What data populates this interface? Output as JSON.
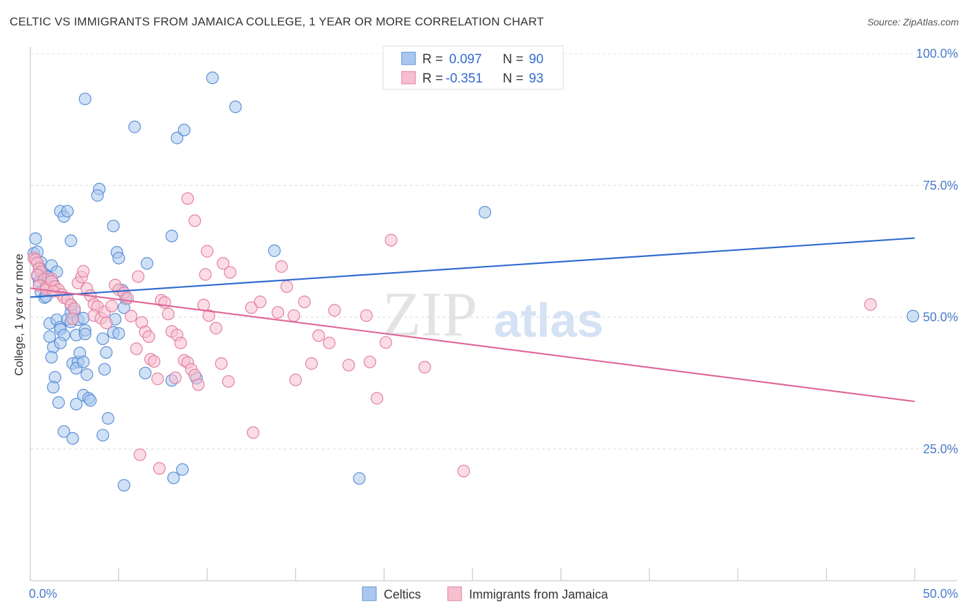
{
  "title": "CELTIC VS IMMIGRANTS FROM JAMAICA COLLEGE, 1 YEAR OR MORE CORRELATION CHART",
  "source": "Source: ZipAtlas.com",
  "watermark": {
    "zip": "ZIP",
    "atlas": "atlas"
  },
  "legend": {
    "r_label": "R =",
    "n_label": "N =",
    "rows": [
      {
        "r": "0.097",
        "n": "90",
        "color": "#a9c8ef",
        "stroke": "#5b8fd6"
      },
      {
        "r": "-0.351",
        "n": "93",
        "color": "#f7bfd0",
        "stroke": "#e27fa0"
      }
    ]
  },
  "chart_data": {
    "type": "scatter",
    "title": "CELTIC VS IMMIGRANTS FROM JAMAICA COLLEGE, 1 YEAR OR MORE CORRELATION CHART",
    "xlabel": "",
    "ylabel": "College, 1 year or more",
    "xlim": [
      0,
      50
    ],
    "ylim": [
      0,
      100
    ],
    "x_ticks_labeled": [
      "0.0%",
      "50.0%"
    ],
    "y_ticks_labeled": [
      "25.0%",
      "50.0%",
      "75.0%",
      "100.0%"
    ],
    "y_tick_values": [
      25,
      50,
      75,
      100
    ],
    "grid": "horizontal dashed",
    "legend_placement": "top-center",
    "series": [
      {
        "name": "Celtics",
        "color": "#a9c8ef",
        "stroke": "#5b8fd6",
        "trend": {
          "x": [
            0,
            50
          ],
          "y": [
            53.8,
            65.0
          ],
          "color": "#2f6ad0"
        },
        "points": [
          [
            0.3,
            64.9
          ],
          [
            0.2,
            62.1
          ],
          [
            0.4,
            62.4
          ],
          [
            0.6,
            60.4
          ],
          [
            0.4,
            57.8
          ],
          [
            0.8,
            58.2
          ],
          [
            0.7,
            57.4
          ],
          [
            0.5,
            56.7
          ],
          [
            0.9,
            58.0
          ],
          [
            1.0,
            57.7
          ],
          [
            0.6,
            54.8
          ],
          [
            0.8,
            53.7
          ],
          [
            0.9,
            53.9
          ],
          [
            1.3,
            56.4
          ],
          [
            1.2,
            59.8
          ],
          [
            1.5,
            58.6
          ],
          [
            1.0,
            57.6
          ],
          [
            1.1,
            48.8
          ],
          [
            1.1,
            46.3
          ],
          [
            1.3,
            44.3
          ],
          [
            1.2,
            42.4
          ],
          [
            1.4,
            38.6
          ],
          [
            1.3,
            36.7
          ],
          [
            1.5,
            49.5
          ],
          [
            1.7,
            48.1
          ],
          [
            1.7,
            47.7
          ],
          [
            1.9,
            46.6
          ],
          [
            1.7,
            45.1
          ],
          [
            2.1,
            49.6
          ],
          [
            2.3,
            49.1
          ],
          [
            2.3,
            52.2
          ],
          [
            2.5,
            51.2
          ],
          [
            2.3,
            50.9
          ],
          [
            2.7,
            49.5
          ],
          [
            3.0,
            49.8
          ],
          [
            2.6,
            46.6
          ],
          [
            3.1,
            47.5
          ],
          [
            3.1,
            46.8
          ],
          [
            2.4,
            41.2
          ],
          [
            2.7,
            41.5
          ],
          [
            2.6,
            40.3
          ],
          [
            2.8,
            43.2
          ],
          [
            3.0,
            41.5
          ],
          [
            3.2,
            39.1
          ],
          [
            3.0,
            35.2
          ],
          [
            3.3,
            34.6
          ],
          [
            3.4,
            34.2
          ],
          [
            2.6,
            33.5
          ],
          [
            1.6,
            33.8
          ],
          [
            1.9,
            28.3
          ],
          [
            2.4,
            27.0
          ],
          [
            1.7,
            70.1
          ],
          [
            1.9,
            69.1
          ],
          [
            2.1,
            70.1
          ],
          [
            2.3,
            64.5
          ],
          [
            3.1,
            91.4
          ],
          [
            3.9,
            74.3
          ],
          [
            3.8,
            73.1
          ],
          [
            4.7,
            67.3
          ],
          [
            4.9,
            62.3
          ],
          [
            5.0,
            61.2
          ],
          [
            5.2,
            55.1
          ],
          [
            5.4,
            53.5
          ],
          [
            5.3,
            51.8
          ],
          [
            4.8,
            49.6
          ],
          [
            4.7,
            47.1
          ],
          [
            5.0,
            46.9
          ],
          [
            4.1,
            45.9
          ],
          [
            4.3,
            43.3
          ],
          [
            4.2,
            40.1
          ],
          [
            4.4,
            30.8
          ],
          [
            4.1,
            27.6
          ],
          [
            5.9,
            86.1
          ],
          [
            6.6,
            60.2
          ],
          [
            6.5,
            39.4
          ],
          [
            5.3,
            18.1
          ],
          [
            8.3,
            84.0
          ],
          [
            8.7,
            85.5
          ],
          [
            8.0,
            65.4
          ],
          [
            8.0,
            38.0
          ],
          [
            8.6,
            21.1
          ],
          [
            8.1,
            19.5
          ],
          [
            9.4,
            38.4
          ],
          [
            10.3,
            95.4
          ],
          [
            11.6,
            89.9
          ],
          [
            13.8,
            62.6
          ],
          [
            18.6,
            19.4
          ],
          [
            25.7,
            69.9
          ],
          [
            49.9,
            50.2
          ],
          [
            0.5,
            59.5
          ]
        ]
      },
      {
        "name": "Immigrants from Jamaica",
        "color": "#f7bfd0",
        "stroke": "#e27fa0",
        "trend": {
          "x": [
            0,
            50
          ],
          "y": [
            55.5,
            34.0
          ],
          "color": "#e0689a"
        },
        "points": [
          [
            0.2,
            61.2
          ],
          [
            0.3,
            60.9
          ],
          [
            0.4,
            60.3
          ],
          [
            0.5,
            59.2
          ],
          [
            0.6,
            58.6
          ],
          [
            0.4,
            58.0
          ],
          [
            0.8,
            57.2
          ],
          [
            0.5,
            56.0
          ],
          [
            0.9,
            55.7
          ],
          [
            0.9,
            55.3
          ],
          [
            1.2,
            57.3
          ],
          [
            1.2,
            56.8
          ],
          [
            1.4,
            55.8
          ],
          [
            1.6,
            55.2
          ],
          [
            1.3,
            54.9
          ],
          [
            1.8,
            54.3
          ],
          [
            1.9,
            53.7
          ],
          [
            2.1,
            53.4
          ],
          [
            2.3,
            52.4
          ],
          [
            2.5,
            51.6
          ],
          [
            2.7,
            56.5
          ],
          [
            2.9,
            57.6
          ],
          [
            3.0,
            58.7
          ],
          [
            3.2,
            55.4
          ],
          [
            3.4,
            54.1
          ],
          [
            3.6,
            52.5
          ],
          [
            3.8,
            52.0
          ],
          [
            3.6,
            50.3
          ],
          [
            4.0,
            49.8
          ],
          [
            4.2,
            51.0
          ],
          [
            4.3,
            48.9
          ],
          [
            4.6,
            52.1
          ],
          [
            4.8,
            56.1
          ],
          [
            5.0,
            55.2
          ],
          [
            5.3,
            54.6
          ],
          [
            5.5,
            53.6
          ],
          [
            5.7,
            50.2
          ],
          [
            6.1,
            57.7
          ],
          [
            6.3,
            49.0
          ],
          [
            6.5,
            47.2
          ],
          [
            6.7,
            46.3
          ],
          [
            6.0,
            44.0
          ],
          [
            6.8,
            42.0
          ],
          [
            7.0,
            41.6
          ],
          [
            7.2,
            38.3
          ],
          [
            7.4,
            53.2
          ],
          [
            7.6,
            52.8
          ],
          [
            7.8,
            50.6
          ],
          [
            8.0,
            47.3
          ],
          [
            8.3,
            46.6
          ],
          [
            8.5,
            45.1
          ],
          [
            8.7,
            41.8
          ],
          [
            8.9,
            41.4
          ],
          [
            9.1,
            40.1
          ],
          [
            9.3,
            39.0
          ],
          [
            9.5,
            37.2
          ],
          [
            9.8,
            52.3
          ],
          [
            10.1,
            50.3
          ],
          [
            10.5,
            47.9
          ],
          [
            10.8,
            41.2
          ],
          [
            11.2,
            37.8
          ],
          [
            8.9,
            72.5
          ],
          [
            9.3,
            68.3
          ],
          [
            10.0,
            62.5
          ],
          [
            10.9,
            60.2
          ],
          [
            11.3,
            58.5
          ],
          [
            12.5,
            51.8
          ],
          [
            13.0,
            52.9
          ],
          [
            14.2,
            59.6
          ],
          [
            14.5,
            55.8
          ],
          [
            14.0,
            50.9
          ],
          [
            14.9,
            50.3
          ],
          [
            15.5,
            52.9
          ],
          [
            15.9,
            41.2
          ],
          [
            16.3,
            46.5
          ],
          [
            16.9,
            45.1
          ],
          [
            17.2,
            51.3
          ],
          [
            18.0,
            40.9
          ],
          [
            19.0,
            50.3
          ],
          [
            19.6,
            34.6
          ],
          [
            20.1,
            45.2
          ],
          [
            19.2,
            41.5
          ],
          [
            20.4,
            64.6
          ],
          [
            22.3,
            40.5
          ],
          [
            24.5,
            20.8
          ],
          [
            12.6,
            28.1
          ],
          [
            7.3,
            21.3
          ],
          [
            6.2,
            23.9
          ],
          [
            47.5,
            52.4
          ],
          [
            15.0,
            38.1
          ],
          [
            8.2,
            38.5
          ],
          [
            9.9,
            58.1
          ],
          [
            2.4,
            49.7
          ]
        ]
      }
    ]
  },
  "bottom_legend": [
    {
      "label": "Celtics",
      "color": "#a9c8ef",
      "stroke": "#5b8fd6"
    },
    {
      "label": "Immigrants from Jamaica",
      "color": "#f7bfd0",
      "stroke": "#e27fa0"
    }
  ]
}
